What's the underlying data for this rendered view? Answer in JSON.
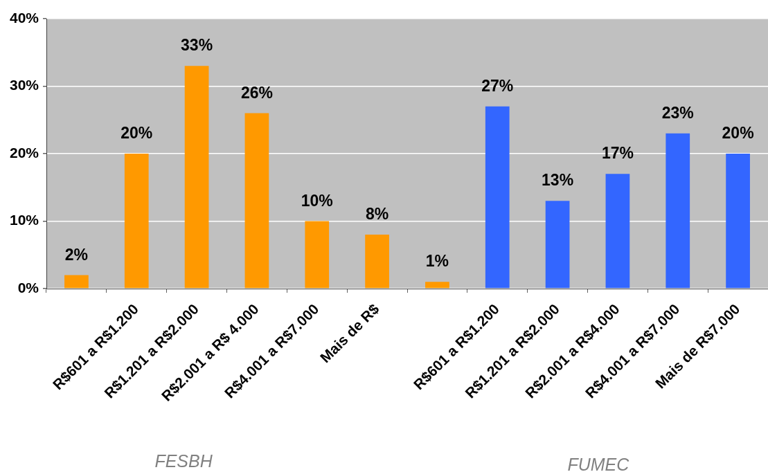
{
  "chart_data": {
    "type": "bar",
    "categories": [
      null,
      "R$601 a R$1.200",
      "R$1.201 a R$2.000",
      "R$2.001 a R$ 4.000",
      "R$4.001 a R$7.000",
      "Mais de R$",
      null,
      "R$601 a R$1.200",
      "R$1.201 a R$2.000",
      "R$2.001 a R$4.000",
      "R$4.001 a R$7.000",
      "Mais de R$7.000"
    ],
    "values": [
      2,
      20,
      33,
      26,
      10,
      8,
      1,
      27,
      13,
      17,
      23,
      20
    ],
    "colors": [
      "#ff9900",
      "#ff9900",
      "#ff9900",
      "#ff9900",
      "#ff9900",
      "#ff9900",
      "#ff9900",
      "#3366ff",
      "#3366ff",
      "#3366ff",
      "#3366ff",
      "#3366ff"
    ],
    "value_labels": [
      "2%",
      "20%",
      "33%",
      "26%",
      "10%",
      "8%",
      "1%",
      "27%",
      "13%",
      "17%",
      "23%",
      "20%"
    ],
    "ylim": [
      0,
      40
    ],
    "yticks": [
      {
        "value": 0,
        "label": "0%"
      },
      {
        "value": 10,
        "label": "10%"
      },
      {
        "value": 20,
        "label": "20%"
      },
      {
        "value": 30,
        "label": "30%"
      },
      {
        "value": 40,
        "label": "40%"
      }
    ],
    "grid": "y",
    "annotations": [
      "FESBH",
      "FUMEC"
    ]
  }
}
